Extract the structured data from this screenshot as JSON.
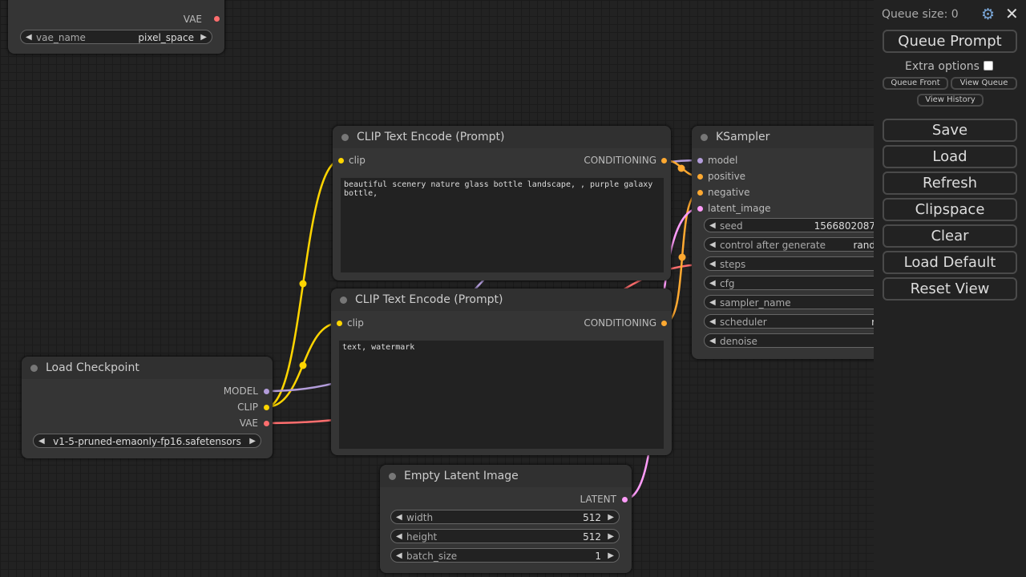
{
  "nodes": [
    {
      "outputs": [
        "VAE"
      ],
      "widgets": [
        {
          "name": "vae_name",
          "value": "pixel_space"
        }
      ]
    },
    {
      "title": "CLIP Text Encode (Prompt)",
      "inputs": [
        "clip"
      ],
      "outputs": [
        "CONDITIONING"
      ],
      "text": "beautiful scenery nature glass bottle landscape, , purple galaxy bottle,"
    },
    {
      "title": "CLIP Text Encode (Prompt)",
      "inputs": [
        "clip"
      ],
      "outputs": [
        "CONDITIONING"
      ],
      "text": "text, watermark"
    },
    {
      "title": "Load Checkpoint",
      "outputs": [
        "MODEL",
        "CLIP",
        "VAE"
      ],
      "widgets": [
        {
          "value": "v1-5-pruned-emaonly-fp16.safetensors"
        }
      ]
    },
    {
      "title": "Empty Latent Image",
      "outputs": [
        "LATENT"
      ],
      "widgets": [
        {
          "name": "width",
          "value": "512"
        },
        {
          "name": "height",
          "value": "512"
        },
        {
          "name": "batch_size",
          "value": "1"
        }
      ]
    },
    {
      "title": "KSampler",
      "inputs": [
        "model",
        "positive",
        "negative",
        "latent_image"
      ],
      "widgets": [
        {
          "name": "seed",
          "value": "1566802087"
        },
        {
          "name": "control after generate",
          "value": "rand"
        },
        {
          "name": "steps"
        },
        {
          "name": "cfg"
        },
        {
          "name": "sampler_name"
        },
        {
          "name": "scheduler",
          "value": "r"
        },
        {
          "name": "denoise"
        }
      ]
    }
  ],
  "menu": {
    "queue_size": "Queue size: 0",
    "queue_prompt": "Queue Prompt",
    "extra_options": "Extra options",
    "queue_front": "Queue Front",
    "view_queue": "View Queue",
    "view_history": "View History",
    "buttons": [
      "Save",
      "Load",
      "Refresh",
      "Clipspace",
      "Clear",
      "Load Default",
      "Reset View"
    ]
  }
}
